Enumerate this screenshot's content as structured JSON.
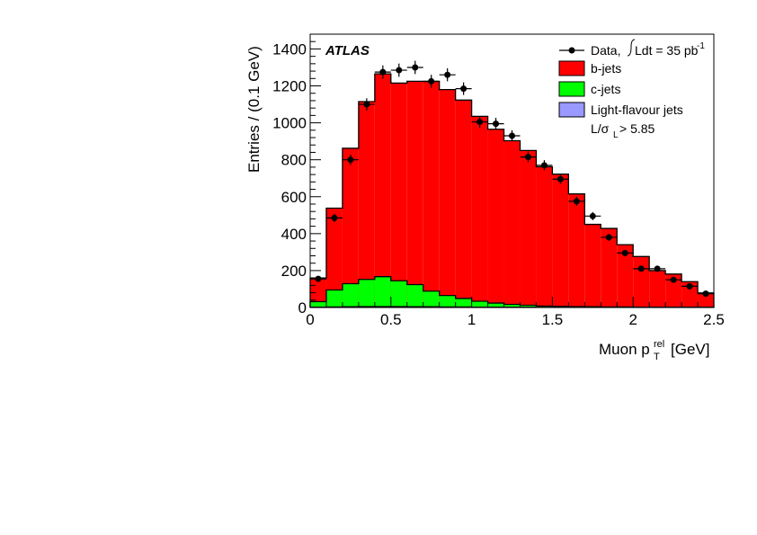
{
  "chart_data": {
    "type": "bar",
    "experiment_label": "ATLAS",
    "xlabel": {
      "base": "Muon p",
      "sub": "T",
      "sup": "rel",
      "unit": "[GeV]"
    },
    "ylabel": "Entries / (0.1 GeV)",
    "xlim": [
      0,
      2.5
    ],
    "ylim": [
      0,
      1480
    ],
    "xticks": [
      "0",
      "0.5",
      "1",
      "1.5",
      "2",
      "2.5"
    ],
    "yticks": [
      "0",
      "200",
      "400",
      "600",
      "800",
      "1000",
      "1200",
      "1400"
    ],
    "bin_edges": [
      0,
      0.1,
      0.2,
      0.3,
      0.4,
      0.5,
      0.6,
      0.7,
      0.8,
      0.9,
      1.0,
      1.1,
      1.2,
      1.3,
      1.4,
      1.5,
      1.6,
      1.7,
      1.8,
      1.9,
      2.0,
      2.1,
      2.2,
      2.3,
      2.4,
      2.5
    ],
    "stack": [
      {
        "name": "Light-flavour jets",
        "color": "#9999ff",
        "values": [
          2,
          3,
          4,
          5,
          5,
          5,
          4,
          4,
          3,
          3,
          2,
          2,
          2,
          2,
          1,
          1,
          1,
          1,
          1,
          1,
          1,
          1,
          1,
          1,
          1
        ]
      },
      {
        "name": "c-jets",
        "color": "#00ff00",
        "values": [
          30,
          92,
          125,
          147,
          162,
          140,
          120,
          85,
          62,
          46,
          32,
          22,
          15,
          10,
          7,
          5,
          4,
          3,
          2,
          2,
          1,
          1,
          1,
          1,
          1
        ]
      },
      {
        "name": "b-jets",
        "color": "#ff0000",
        "values": [
          128,
          443,
          733,
          963,
          1098,
          1070,
          1101,
          1135,
          1115,
          1074,
          1001,
          941,
          886,
          838,
          754,
          716,
          610,
          446,
          425,
          337,
          274,
          198,
          179,
          138,
          77
        ]
      }
    ],
    "data": {
      "name": "Data",
      "x": [
        0.05,
        0.15,
        0.25,
        0.35,
        0.45,
        0.55,
        0.65,
        0.75,
        0.85,
        0.95,
        1.05,
        1.15,
        1.25,
        1.35,
        1.45,
        1.55,
        1.65,
        1.75,
        1.85,
        1.95,
        2.05,
        2.15,
        2.25,
        2.35,
        2.45
      ],
      "y": [
        155,
        485,
        800,
        1100,
        1275,
        1285,
        1300,
        1225,
        1260,
        1185,
        1005,
        995,
        930,
        815,
        770,
        695,
        575,
        495,
        380,
        295,
        210,
        210,
        150,
        115,
        75
      ],
      "yerr": [
        12,
        22,
        28,
        33,
        36,
        36,
        36,
        35,
        35,
        34,
        32,
        32,
        30,
        29,
        28,
        26,
        24,
        22,
        19,
        17,
        14,
        14,
        12,
        11,
        9
      ]
    },
    "legend": {
      "placement": "top-right",
      "data_label": "Data,",
      "lumi_label": "Ldt = 35 pb",
      "lumi_sup": "-1",
      "entries": [
        "b-jets",
        "c-jets",
        "Light-flavour jets"
      ],
      "cut_label": {
        "base": "L/σ",
        "sub": "L",
        "rest": " > 5.85"
      }
    }
  }
}
